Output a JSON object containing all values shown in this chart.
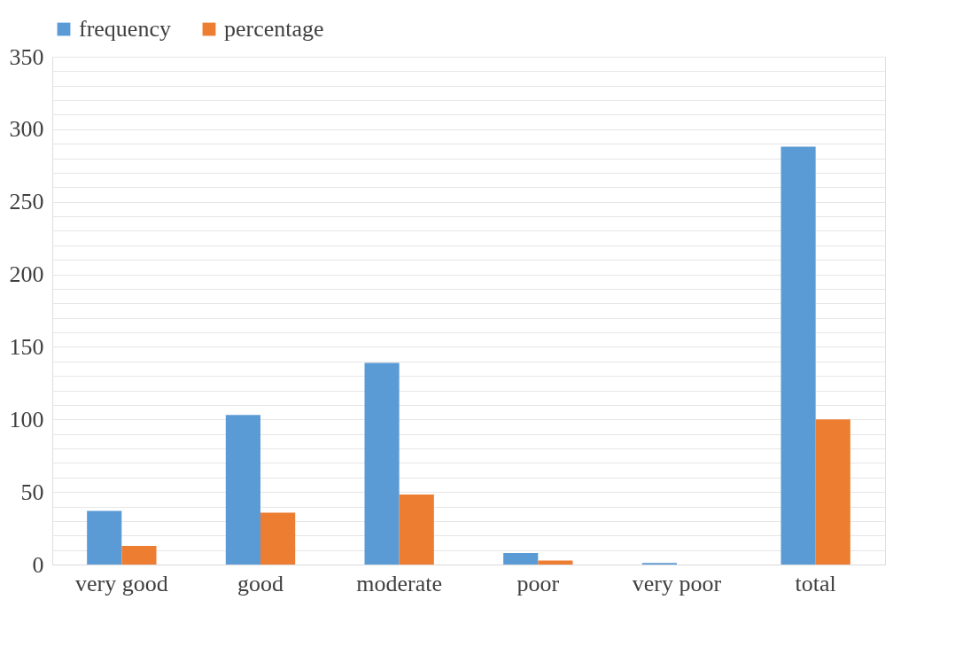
{
  "chart_data": {
    "type": "bar",
    "categories": [
      "very good",
      "good",
      "moderate",
      "poor",
      "very poor",
      "total"
    ],
    "series": [
      {
        "name": "frequency",
        "color": "#5b9bd5",
        "values": [
          37,
          103,
          139,
          8,
          1,
          288
        ]
      },
      {
        "name": "percentage",
        "color": "#ed7d31",
        "values": [
          12.8,
          35.8,
          48.3,
          2.8,
          null,
          100
        ]
      }
    ],
    "ylim": [
      0,
      350
    ],
    "yticks": [
      0,
      {
        "value": 10,
        "label": null
      },
      {
        "value": 20,
        "label": null
      },
      {
        "value": 30,
        "label": null
      },
      {
        "value": 40,
        "label": null
      },
      50,
      {
        "value": 60,
        "label": null
      },
      {
        "value": 70,
        "label": null
      },
      {
        "value": 80,
        "label": null
      },
      {
        "value": 90,
        "label": null
      },
      100,
      {
        "value": 110,
        "label": null
      },
      {
        "value": 120,
        "label": null
      },
      {
        "value": 130,
        "label": null
      },
      {
        "value": 140,
        "label": null
      },
      150,
      {
        "value": 160,
        "label": null
      },
      {
        "value": 170,
        "label": null
      },
      {
        "value": 180,
        "label": null
      },
      {
        "value": 190,
        "label": null
      },
      200,
      {
        "value": 210,
        "label": null
      },
      {
        "value": 220,
        "label": null
      },
      {
        "value": 230,
        "label": null
      },
      {
        "value": 240,
        "label": null
      },
      250,
      {
        "value": 260,
        "label": null
      },
      {
        "value": 270,
        "label": null
      },
      {
        "value": 280,
        "label": null
      },
      {
        "value": 290,
        "label": null
      },
      300,
      {
        "value": 310,
        "label": null
      },
      {
        "value": 320,
        "label": null
      },
      {
        "value": 330,
        "label": null
      },
      {
        "value": 340,
        "label": null
      },
      350
    ],
    "grid": true,
    "legend": "top"
  }
}
